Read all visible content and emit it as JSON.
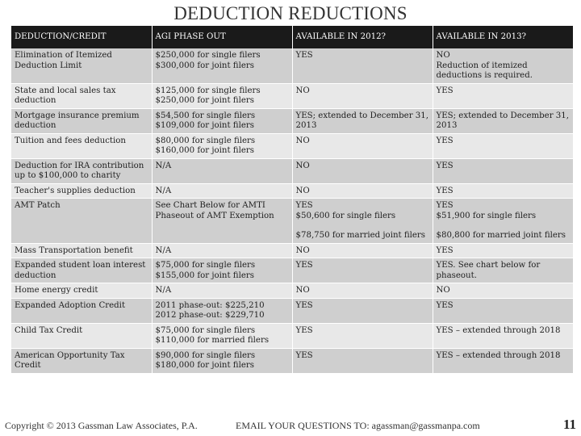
{
  "title": "DEDUCTION REDUCTIONS",
  "headers": [
    "DEDUCTION/CREDIT",
    "AGI PHASE OUT",
    "AVAILABLE IN 2012?",
    "AVAILABLE IN 2013?"
  ],
  "rows": [
    {
      "deduction": [
        "Elimination of Itemized",
        "Deduction Limit"
      ],
      "agi": [
        "$250,000 for single filers",
        "$300,000 for joint filers"
      ],
      "y2012": [
        "YES"
      ],
      "y2013": [
        "NO",
        "Reduction of itemized",
        "deductions is required."
      ]
    },
    {
      "deduction": [
        "State and local sales tax",
        "deduction"
      ],
      "agi": [
        "$125,000 for single filers",
        "$250,000 for joint filers"
      ],
      "y2012": [
        "NO"
      ],
      "y2013": [
        "YES"
      ]
    },
    {
      "deduction": [
        "Mortgage insurance premium",
        "deduction"
      ],
      "agi": [
        "$54,500 for single filers",
        "$109,000 for joint filers"
      ],
      "y2012": [
        "YES; extended to December 31,",
        "2013"
      ],
      "y2013": [
        "YES; extended to December 31,",
        "2013"
      ]
    },
    {
      "deduction": [
        "Tuition and fees deduction"
      ],
      "agi": [
        "$80,000 for single filers",
        "$160,000 for joint filers"
      ],
      "y2012": [
        "NO"
      ],
      "y2013": [
        "YES"
      ]
    },
    {
      "deduction": [
        "Deduction for IRA contribution",
        "up to $100,000 to charity"
      ],
      "agi": [
        "N/A"
      ],
      "y2012": [
        "NO"
      ],
      "y2013": [
        "YES"
      ]
    },
    {
      "deduction": [
        "Teacher's supplies deduction"
      ],
      "agi": [
        "N/A"
      ],
      "y2012": [
        "NO"
      ],
      "y2013": [
        "YES"
      ]
    },
    {
      "deduction": [
        "AMT Patch"
      ],
      "agi": [
        "See Chart Below for AMTI",
        "Phaseout of AMT Exemption"
      ],
      "y2012": [
        "YES",
        "$50,600 for single filers",
        "",
        "$78,750 for married joint filers"
      ],
      "y2013": [
        "YES",
        "$51,900 for single filers",
        "",
        "$80,800 for married joint filers"
      ]
    },
    {
      "deduction": [
        "Mass Transportation benefit"
      ],
      "agi": [
        "N/A"
      ],
      "y2012": [
        "NO"
      ],
      "y2013": [
        "YES"
      ]
    },
    {
      "deduction": [
        "Expanded student loan interest",
        "deduction"
      ],
      "agi": [
        "$75,000 for single filers",
        "$155,000 for joint filers"
      ],
      "y2012": [
        "YES"
      ],
      "y2013": [
        "YES.  See chart below for",
        "phaseout."
      ]
    },
    {
      "deduction": [
        "Home energy credit"
      ],
      "agi": [
        "N/A"
      ],
      "y2012": [
        "NO"
      ],
      "y2013": [
        "NO"
      ]
    },
    {
      "deduction": [
        "Expanded Adoption Credit"
      ],
      "agi": [
        "2011 phase-out: $225,210",
        "2012 phase-out: $229,710"
      ],
      "y2012": [
        "YES"
      ],
      "y2013": [
        "YES"
      ]
    },
    {
      "deduction": [
        "Child Tax Credit"
      ],
      "agi": [
        "$75,000 for single filers",
        "$110,000 for married filers"
      ],
      "y2012": [
        "YES"
      ],
      "y2013": [
        "YES – extended through 2018"
      ]
    },
    {
      "deduction": [
        "American Opportunity Tax",
        "Credit"
      ],
      "agi": [
        "$90,000 for single filers",
        "$180,000 for joint filers"
      ],
      "y2012": [
        "YES"
      ],
      "y2013": [
        "YES – extended through 2018"
      ]
    }
  ],
  "footer": {
    "copyright": "Copyright © 2013 Gassman Law Associates, P.A.",
    "email": "EMAIL YOUR QUESTIONS TO: agassman@gassmanpa.com",
    "page_number": "11"
  }
}
